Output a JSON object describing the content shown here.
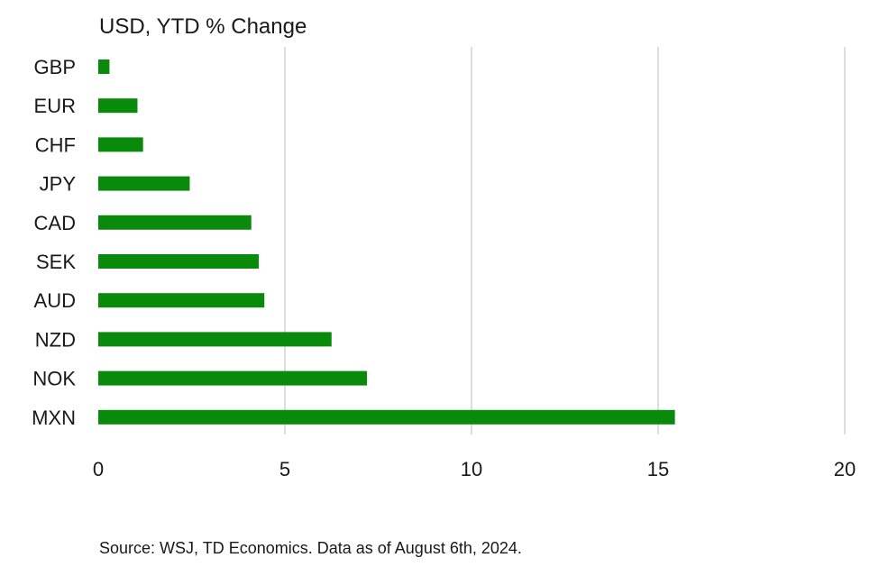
{
  "chart_data": {
    "type": "bar",
    "orientation": "horizontal",
    "title": "USD, YTD % Change",
    "categories": [
      "GBP",
      "EUR",
      "CHF",
      "JPY",
      "CAD",
      "SEK",
      "AUD",
      "NZD",
      "NOK",
      "MXN"
    ],
    "values": [
      0.3,
      1.05,
      1.2,
      2.45,
      4.1,
      4.3,
      4.45,
      6.25,
      7.2,
      15.45
    ],
    "xticks": [
      0,
      5,
      10,
      15,
      20
    ],
    "xlim": [
      0,
      20
    ],
    "grid": "vertical",
    "bar_color": "#0a8a0a",
    "source": "Source: WSJ, TD Economics. Data as of August 6th, 2024."
  }
}
